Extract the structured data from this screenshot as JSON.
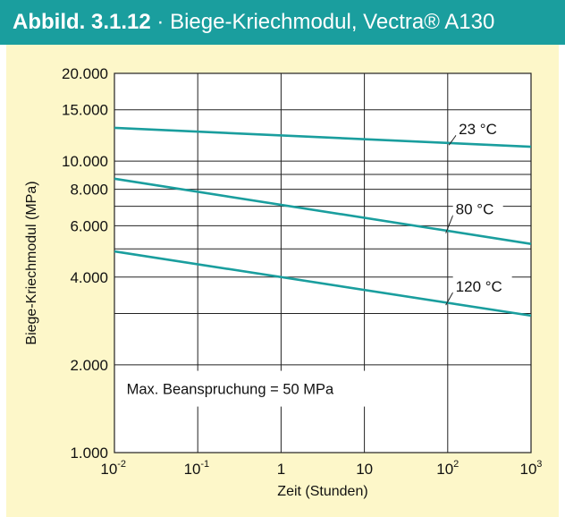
{
  "header": {
    "label": "Abbild. 3.1.12",
    "separator": "·",
    "title": "Biege-Kriechmodul, Vectra® A130",
    "background": "#1a9e9e"
  },
  "panel_background": "#fdf7c9",
  "chart_data": {
    "type": "line",
    "title": "Biege-Kriechmodul, Vectra® A130",
    "xlabel": "Zeit (Stunden)",
    "ylabel": "Biege-Kriechmodul (MPa)",
    "x_scale": "log",
    "y_scale": "log",
    "xlim": [
      0.01,
      1000
    ],
    "ylim": [
      1000,
      20000
    ],
    "grid": true,
    "x_ticks": [
      {
        "value": 0.01,
        "base": "10",
        "exp": "-2"
      },
      {
        "value": 0.1,
        "base": "10",
        "exp": "-1"
      },
      {
        "value": 1,
        "base": "1",
        "exp": ""
      },
      {
        "value": 10,
        "base": "10",
        "exp": ""
      },
      {
        "value": 100,
        "base": "10",
        "exp": "2"
      },
      {
        "value": 1000,
        "base": "10",
        "exp": "3"
      }
    ],
    "y_ticks": [
      {
        "value": 1000,
        "label": "1.000"
      },
      {
        "value": 2000,
        "label": "2.000"
      },
      {
        "value": 4000,
        "label": "4.000"
      },
      {
        "value": 6000,
        "label": "6.000"
      },
      {
        "value": 8000,
        "label": "8.000"
      },
      {
        "value": 10000,
        "label": "10.000"
      },
      {
        "value": 15000,
        "label": "15.000"
      },
      {
        "value": 20000,
        "label": "20.000"
      }
    ],
    "y_gridlines": [
      1000,
      2000,
      3000,
      4000,
      5000,
      6000,
      7000,
      8000,
      9000,
      10000,
      15000,
      20000
    ],
    "series": [
      {
        "name": "23 °C",
        "x": [
          0.01,
          1000
        ],
        "y": [
          13000,
          11200
        ],
        "color": "#1a9e9e",
        "label_at": {
          "x": 120,
          "y": 12800
        }
      },
      {
        "name": "80 °C",
        "x": [
          0.01,
          1000
        ],
        "y": [
          8700,
          5200
        ],
        "color": "#1a9e9e",
        "label_at": {
          "x": 110,
          "y": 6800
        }
      },
      {
        "name": "120 °C",
        "x": [
          0.01,
          1000
        ],
        "y": [
          4900,
          2950
        ],
        "color": "#1a9e9e",
        "label_at": {
          "x": 110,
          "y": 3700
        }
      }
    ],
    "annotation": "Max. Beanspruchung = 50 MPa"
  }
}
